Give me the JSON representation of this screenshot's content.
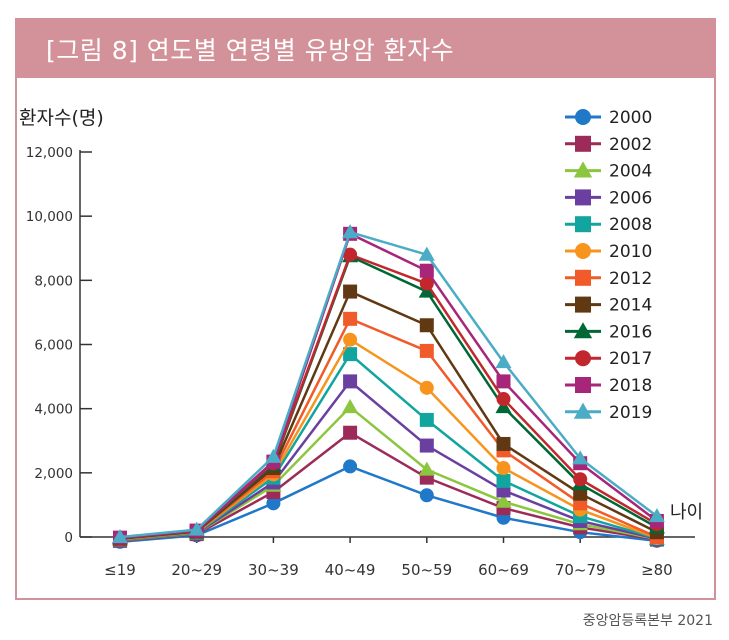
{
  "header": {
    "title": "[그림 8] 연도별 연령별 유방암 환자수"
  },
  "footer": {
    "source": "중앙암등록본부 2021"
  },
  "chart_data": {
    "type": "line",
    "title": "[그림 8] 연도별 연령별 유방암 환자수",
    "ylabel": "환자수(명)",
    "xlabel": "나이",
    "ylim": [
      0,
      12000
    ],
    "yticks": [
      0,
      2000,
      4000,
      6000,
      8000,
      10000,
      12000
    ],
    "ytick_labels": [
      "0",
      "2,000",
      "4,000",
      "6,000",
      "8,000",
      "10,000",
      "12,000"
    ],
    "categories": [
      "≤19",
      "20~29",
      "30~39",
      "40~49",
      "50~59",
      "60~69",
      "70~79",
      "≥80"
    ],
    "legend_position": "top-right",
    "series": [
      {
        "name": "2000",
        "color": "#1f78c8",
        "marker": "circle",
        "values": [
          -150,
          50,
          1050,
          2200,
          1300,
          600,
          150,
          -120
        ]
      },
      {
        "name": "2002",
        "color": "#9c2b5a",
        "marker": "square",
        "values": [
          -120,
          90,
          1400,
          3250,
          1850,
          900,
          300,
          -80
        ]
      },
      {
        "name": "2004",
        "color": "#8cc63f",
        "marker": "triangle",
        "values": [
          -100,
          110,
          1600,
          4050,
          2100,
          1100,
          400,
          -60
        ]
      },
      {
        "name": "2006",
        "color": "#6a3fa0",
        "marker": "square",
        "values": [
          -90,
          120,
          1700,
          4850,
          2850,
          1450,
          500,
          -50
        ]
      },
      {
        "name": "2008",
        "color": "#12a5a0",
        "marker": "square",
        "values": [
          -80,
          130,
          1850,
          5700,
          3650,
          1750,
          650,
          -40
        ]
      },
      {
        "name": "2010",
        "color": "#f7941d",
        "marker": "circle",
        "values": [
          -70,
          150,
          1950,
          6150,
          4650,
          2150,
          850,
          -30
        ]
      },
      {
        "name": "2012",
        "color": "#f15a29",
        "marker": "square",
        "values": [
          -60,
          160,
          2050,
          6800,
          5800,
          2700,
          1050,
          0
        ]
      },
      {
        "name": "2014",
        "color": "#603913",
        "marker": "square",
        "values": [
          -50,
          170,
          2150,
          7650,
          6600,
          2900,
          1350,
          150
        ]
      },
      {
        "name": "2016",
        "color": "#006837",
        "marker": "triangle",
        "values": [
          -40,
          180,
          2250,
          8750,
          7650,
          4050,
          1650,
          300
        ]
      },
      {
        "name": "2017",
        "color": "#c1272d",
        "marker": "circle",
        "values": [
          -30,
          190,
          2300,
          8800,
          7900,
          4300,
          1800,
          400
        ]
      },
      {
        "name": "2018",
        "color": "#a7267a",
        "marker": "square",
        "values": [
          -20,
          200,
          2350,
          9450,
          8300,
          4850,
          2300,
          500
        ]
      },
      {
        "name": "2019",
        "color": "#4bacc6",
        "marker": "triangle",
        "values": [
          0,
          230,
          2500,
          9500,
          8800,
          5450,
          2450,
          650
        ]
      }
    ]
  }
}
